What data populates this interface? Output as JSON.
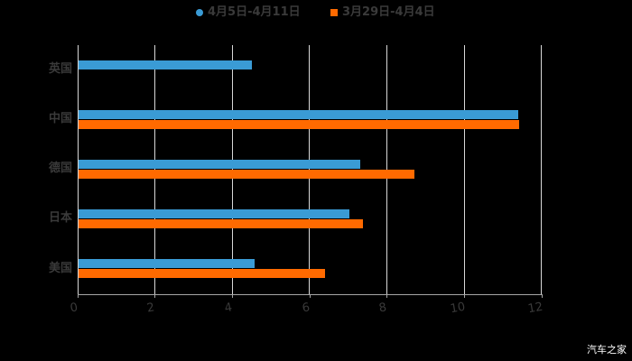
{
  "chart_data": {
    "type": "bar",
    "orientation": "horizontal",
    "title": "",
    "xlabel": "",
    "ylabel": "",
    "categories": [
      "英国",
      "中国",
      "德国",
      "日本",
      "美国"
    ],
    "series": [
      {
        "name": "4月5日-4月11日",
        "color": "#3a9bd5",
        "values": [
          4.48,
          11.37,
          7.28,
          7.0,
          4.55
        ]
      },
      {
        "name": "3月29日-4月4日",
        "color": "#ff6a00",
        "values": [
          null,
          11.39,
          8.69,
          7.35,
          6.37
        ]
      }
    ],
    "xlim": [
      0,
      12
    ],
    "xticks": [
      "0",
      "2",
      "4",
      "6",
      "8",
      "10",
      "12"
    ],
    "grid": true,
    "legend_position": "top"
  },
  "legend": {
    "items": [
      {
        "label": "4月5日-4月11日",
        "color": "#3a9bd5",
        "shape": "circle"
      },
      {
        "label": "3月29日-4月4日",
        "color": "#ff6a00",
        "shape": "square"
      }
    ]
  },
  "watermark": "汽车之家"
}
